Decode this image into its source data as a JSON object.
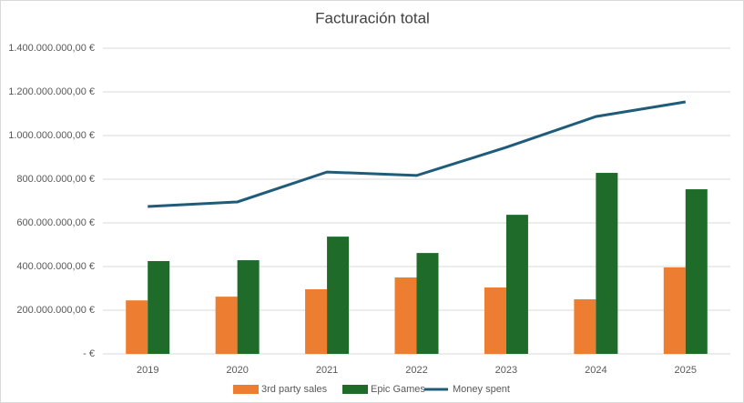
{
  "chart_data": {
    "type": "bar",
    "title": "Facturación total",
    "categories": [
      "2019",
      "2020",
      "2021",
      "2022",
      "2023",
      "2024",
      "2025"
    ],
    "series": [
      {
        "name": "3rd party sales",
        "color": "#ED7D31",
        "values": [
          245000000,
          262000000,
          296000000,
          350000000,
          304000000,
          250000000,
          396000000
        ]
      },
      {
        "name": "Epic Games",
        "color": "#1E6B2A",
        "values": [
          425000000,
          429000000,
          537000000,
          462000000,
          637000000,
          829000000,
          754000000
        ]
      },
      {
        "name": "Money spent",
        "type": "line",
        "color": "#1F5C7A",
        "values": [
          675000000,
          696000000,
          833000000,
          817000000,
          946000000,
          1087000000,
          1154000000
        ]
      }
    ],
    "ylim": [
      0,
      1400000000
    ],
    "yticks": [
      {
        "value": 0,
        "label": "-   €"
      },
      {
        "value": 200000000,
        "label": "200.000.000,00 €"
      },
      {
        "value": 400000000,
        "label": "400.000.000,00 €"
      },
      {
        "value": 600000000,
        "label": "600.000.000,00 €"
      },
      {
        "value": 800000000,
        "label": "800.000.000,00 €"
      },
      {
        "value": 1000000000,
        "label": "1.000.000.000,00 €"
      },
      {
        "value": 1200000000,
        "label": "1.200.000.000,00 €"
      },
      {
        "value": 1400000000,
        "label": "1.400.000.000,00 €"
      }
    ],
    "grid": true,
    "legend": "bottom"
  }
}
